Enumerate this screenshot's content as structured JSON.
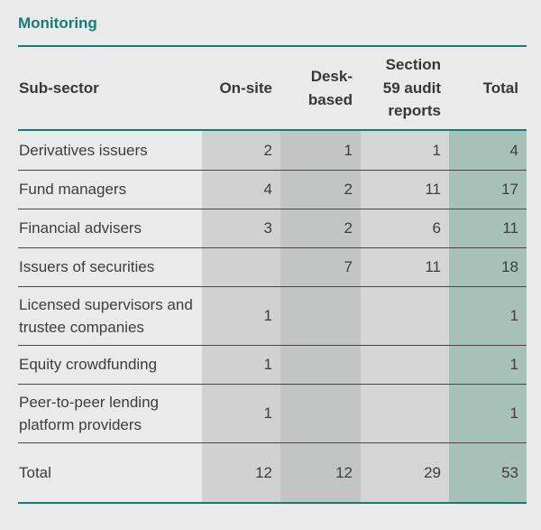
{
  "page": {
    "title": "Monitoring"
  },
  "accent_color": "#147e76",
  "column_colors": {
    "onsite_bg": "#d1d1d1",
    "desk_bg": "#c3c4c4",
    "s59_bg": "#d5d5d5",
    "total_bg": "#a7c0b8"
  },
  "table": {
    "columns": [
      {
        "label": "Sub-sector"
      },
      {
        "label": "On-site"
      },
      {
        "label": "Desk-based"
      },
      {
        "label": "Section 59 audit reports"
      },
      {
        "label": "Total"
      }
    ],
    "rows": [
      {
        "label": "Derivatives issuers",
        "onsite": "2",
        "desk": "1",
        "s59": "1",
        "total": "4"
      },
      {
        "label": "Fund managers",
        "onsite": "4",
        "desk": "2",
        "s59": "11",
        "total": "17"
      },
      {
        "label": "Financial advisers",
        "onsite": "3",
        "desk": "2",
        "s59": "6",
        "total": "11"
      },
      {
        "label": "Issuers of securities",
        "onsite": "",
        "desk": "7",
        "s59": "11",
        "total": "18"
      },
      {
        "label": "Licensed supervisors and trustee companies",
        "onsite": "1",
        "desk": "",
        "s59": "",
        "total": "1"
      },
      {
        "label": "Equity crowdfunding",
        "onsite": "1",
        "desk": "",
        "s59": "",
        "total": "1"
      },
      {
        "label": "Peer-to-peer lending platform providers",
        "onsite": "1",
        "desk": "",
        "s59": "",
        "total": "1"
      },
      {
        "label": "Total",
        "onsite": "12",
        "desk": "12",
        "s59": "29",
        "total": "53"
      }
    ]
  },
  "chart_data": {
    "type": "table",
    "title": "Monitoring",
    "columns": [
      "Sub-sector",
      "On-site",
      "Desk-based",
      "Section 59 audit reports",
      "Total"
    ],
    "rows": [
      [
        "Derivatives issuers",
        2,
        1,
        1,
        4
      ],
      [
        "Fund managers",
        4,
        2,
        11,
        17
      ],
      [
        "Financial advisers",
        3,
        2,
        6,
        11
      ],
      [
        "Issuers of securities",
        null,
        7,
        11,
        18
      ],
      [
        "Licensed supervisors and trustee companies",
        1,
        null,
        null,
        1
      ],
      [
        "Equity crowdfunding",
        1,
        null,
        null,
        1
      ],
      [
        "Peer-to-peer lending platform providers",
        1,
        null,
        null,
        1
      ],
      [
        "Total",
        12,
        12,
        29,
        53
      ]
    ]
  }
}
